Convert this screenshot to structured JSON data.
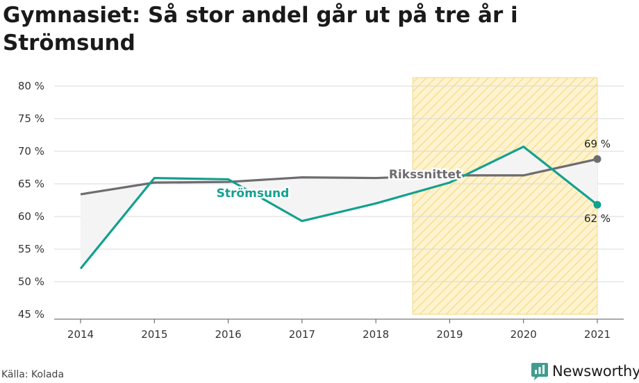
{
  "title": "Gymnasiet: Så stor andel går ut på tre år i Strömsund",
  "source": "Källa: Kolada",
  "brand": "Newsworthy",
  "colors": {
    "stromsund": "#13a08f",
    "riksnittet": "#6e6c70",
    "forecast_fill": "#fdf3cf",
    "forecast_stripe": "#f7d77c",
    "gap_fill": "#f4f4f4"
  },
  "icons": {
    "logo": "bar-chart-speech-bubble-icon"
  },
  "chart_data": {
    "type": "line",
    "title": "Gymnasiet: Så stor andel går ut på tre år i Strömsund",
    "x": [
      2014,
      2015,
      2016,
      2017,
      2018,
      2019,
      2020,
      2021
    ],
    "ylim": [
      45,
      80
    ],
    "yticks": [
      45,
      50,
      55,
      60,
      65,
      70,
      75,
      80
    ],
    "ytick_labels": [
      "45 %",
      "50 %",
      "55 %",
      "60 %",
      "65 %",
      "70 %",
      "75 %",
      "80 %"
    ],
    "xtick_labels": [
      "2014",
      "2015",
      "2016",
      "2017",
      "2018",
      "2019",
      "2020",
      "2021"
    ],
    "grid": true,
    "highlight_range": [
      2018.5,
      2021
    ],
    "series": [
      {
        "name": "Strömsund",
        "values": [
          52.0,
          65.9,
          65.7,
          59.3,
          62.0,
          65.2,
          70.7,
          61.8
        ],
        "end_label": "62 %"
      },
      {
        "name": "Rikssnittet",
        "values": [
          63.4,
          65.2,
          65.3,
          66.0,
          65.9,
          66.3,
          66.3,
          68.8
        ],
        "end_label": "69 %"
      }
    ]
  }
}
